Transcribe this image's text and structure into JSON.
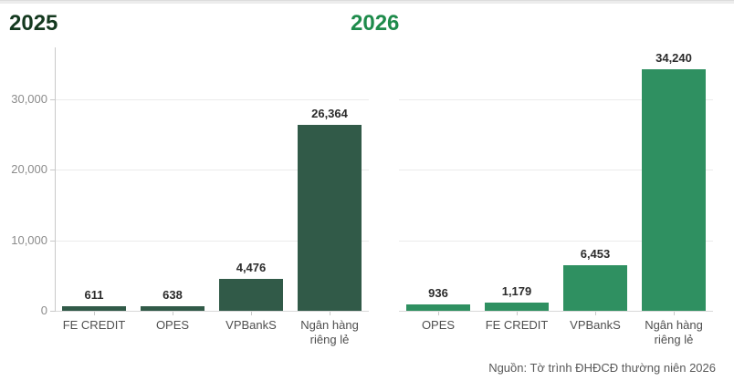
{
  "chart_data": [
    {
      "type": "bar",
      "title": "2025",
      "title_color": "#14391f",
      "bar_color": "#315a48",
      "categories": [
        "FE CREDIT",
        "OPES",
        "VPBankS",
        "Ngân hàng riêng lẻ"
      ],
      "values": [
        611,
        638,
        4476,
        26364
      ],
      "value_labels": [
        "611",
        "638",
        "4,476",
        "26,364"
      ],
      "xlabel": "",
      "ylabel": "",
      "ylim": [
        0,
        37000
      ],
      "yticks": [
        0,
        10000,
        20000,
        30000
      ],
      "ytick_labels": [
        "0",
        "10,000",
        "20,000",
        "30,000"
      ],
      "grid": true,
      "y_axis_visible": true,
      "legend": "none"
    },
    {
      "type": "bar",
      "title": "2026",
      "title_color": "#1e8b4b",
      "bar_color": "#2f9061",
      "categories": [
        "OPES",
        "FE CREDIT",
        "VPBankS",
        "Ngân hàng riêng lẻ"
      ],
      "values": [
        936,
        1179,
        6453,
        34240
      ],
      "value_labels": [
        "936",
        "1,179",
        "6,453",
        "34,240"
      ],
      "xlabel": "",
      "ylabel": "",
      "ylim": [
        0,
        37000
      ],
      "yticks": [
        0,
        10000,
        20000,
        30000
      ],
      "ytick_labels": [],
      "grid": true,
      "y_axis_visible": false,
      "legend": "none"
    }
  ],
  "source_note": "Nguồn: Tờ trình ĐHĐCĐ thường niên 2026"
}
